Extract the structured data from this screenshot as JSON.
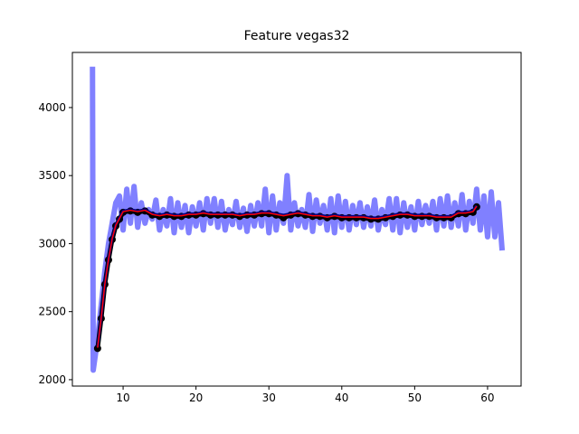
{
  "chart_data": {
    "type": "line",
    "title": "Feature vegas32",
    "xlim": [
      3.04,
      64.6
    ],
    "ylim": [
      1953,
      4405
    ],
    "xticks": [
      10,
      20,
      30,
      40,
      50,
      60
    ],
    "yticks": [
      2000,
      2500,
      3000,
      3500,
      4000
    ],
    "series": [
      {
        "color": "#8080ff",
        "linewidth": 6,
        "x": [
          5.8,
          5.9,
          6.5,
          7,
          7.5,
          8,
          8.5,
          9,
          9.5,
          10,
          10.5,
          11,
          11.5,
          12,
          12.5,
          13,
          13.5,
          14,
          14.5,
          15,
          15.5,
          16,
          16.5,
          17,
          17.5,
          18,
          18.5,
          19,
          19.5,
          20,
          20.5,
          21,
          21.5,
          22,
          22.5,
          23,
          23.5,
          24,
          24.5,
          25,
          25.5,
          26,
          26.5,
          27,
          27.5,
          28,
          28.5,
          29,
          29.5,
          30,
          30.5,
          31,
          31.5,
          32,
          32.5,
          33,
          33.5,
          34,
          34.5,
          35,
          35.5,
          36,
          36.5,
          37,
          37.5,
          38,
          38.5,
          39,
          39.5,
          40,
          40.5,
          41,
          41.5,
          42,
          42.5,
          43,
          43.5,
          44,
          44.5,
          45,
          45.5,
          46,
          46.5,
          47,
          47.5,
          48,
          48.5,
          49,
          49.5,
          50,
          50.5,
          51,
          51.5,
          52,
          52.5,
          53,
          53.5,
          54,
          54.5,
          55,
          55.5,
          56,
          56.5,
          57,
          57.5,
          58,
          58.5,
          59,
          59.5,
          60,
          60.5,
          61,
          61.5,
          62
        ],
        "values": [
          4300,
          2070,
          2300,
          2550,
          2800,
          3000,
          3150,
          3300,
          3350,
          3100,
          3400,
          3150,
          3420,
          3120,
          3300,
          3150,
          3250,
          3180,
          3320,
          3100,
          3250,
          3130,
          3330,
          3080,
          3300,
          3120,
          3280,
          3080,
          3270,
          3130,
          3300,
          3100,
          3330,
          3150,
          3330,
          3120,
          3310,
          3100,
          3250,
          3140,
          3310,
          3120,
          3260,
          3090,
          3280,
          3130,
          3300,
          3130,
          3400,
          3080,
          3350,
          3100,
          3300,
          3150,
          3500,
          3100,
          3300,
          3130,
          3250,
          3120,
          3360,
          3090,
          3320,
          3150,
          3280,
          3100,
          3330,
          3080,
          3350,
          3120,
          3310,
          3100,
          3280,
          3140,
          3300,
          3120,
          3270,
          3130,
          3320,
          3100,
          3250,
          3140,
          3330,
          3100,
          3330,
          3080,
          3300,
          3120,
          3270,
          3100,
          3310,
          3140,
          3280,
          3150,
          3310,
          3100,
          3330,
          3130,
          3350,
          3120,
          3300,
          3130,
          3360,
          3100,
          3310,
          3150,
          3400,
          3100,
          3350,
          3050,
          3380,
          3050,
          3300,
          2950
        ]
      },
      {
        "color": "#000000",
        "linewidth": 5,
        "marker": "o",
        "x": [
          6.5,
          7,
          7.5,
          8,
          8.5,
          9,
          9.5,
          10,
          11,
          12,
          13,
          14,
          15,
          16,
          17,
          18,
          19,
          20,
          21,
          22,
          23,
          24,
          25,
          26,
          27,
          28,
          29,
          30,
          31,
          32,
          33,
          34,
          35,
          36,
          37,
          38,
          39,
          40,
          41,
          42,
          43,
          44,
          45,
          46,
          47,
          48,
          49,
          50,
          51,
          52,
          53,
          54,
          55,
          56,
          57,
          58,
          58.5
        ],
        "values": [
          2230,
          2450,
          2700,
          2880,
          3030,
          3130,
          3180,
          3230,
          3240,
          3230,
          3240,
          3210,
          3200,
          3210,
          3200,
          3200,
          3210,
          3210,
          3220,
          3210,
          3210,
          3210,
          3210,
          3200,
          3210,
          3210,
          3220,
          3220,
          3210,
          3190,
          3210,
          3220,
          3210,
          3200,
          3200,
          3190,
          3200,
          3190,
          3190,
          3190,
          3190,
          3180,
          3180,
          3190,
          3200,
          3210,
          3210,
          3200,
          3200,
          3200,
          3190,
          3190,
          3190,
          3220,
          3220,
          3230,
          3270
        ]
      },
      {
        "color": "#00007f",
        "linewidth": 3,
        "x": [
          6.5,
          7,
          7.5,
          8,
          8.5,
          9,
          9.5,
          10,
          11,
          12,
          13,
          14,
          15,
          16,
          17,
          18,
          19,
          20,
          21,
          22,
          23,
          24,
          25,
          26,
          27,
          28,
          29,
          30,
          31,
          32,
          33,
          34,
          35,
          36,
          37,
          38,
          39,
          40,
          41,
          42,
          43,
          44,
          45,
          46,
          47,
          48,
          49,
          50,
          51,
          52,
          53,
          54,
          55,
          56,
          57,
          58,
          58.5
        ],
        "values": [
          2240,
          2460,
          2710,
          2890,
          3040,
          3140,
          3190,
          3240,
          3250,
          3240,
          3250,
          3220,
          3210,
          3220,
          3210,
          3210,
          3220,
          3220,
          3230,
          3220,
          3220,
          3220,
          3220,
          3210,
          3220,
          3220,
          3230,
          3230,
          3220,
          3210,
          3220,
          3230,
          3220,
          3210,
          3210,
          3200,
          3210,
          3200,
          3200,
          3200,
          3200,
          3190,
          3190,
          3200,
          3210,
          3220,
          3220,
          3210,
          3210,
          3210,
          3200,
          3200,
          3200,
          3230,
          3230,
          3240,
          3280
        ]
      },
      {
        "color": "#ff0000",
        "linewidth": 1.5,
        "x": [
          6.5,
          7,
          7.5,
          8,
          8.5,
          9,
          9.5,
          10,
          11,
          12,
          13,
          14,
          15,
          16,
          17,
          18,
          19,
          20,
          21,
          22,
          23,
          24,
          25,
          26,
          27,
          28,
          29,
          30,
          31,
          32,
          33,
          34,
          35,
          36,
          37,
          38,
          39,
          40,
          41,
          42,
          43,
          44,
          45,
          46,
          47,
          48,
          49,
          50,
          51,
          52,
          53,
          54,
          55,
          56,
          57,
          58,
          58.5
        ],
        "values": [
          2235,
          2455,
          2705,
          2885,
          3035,
          3135,
          3185,
          3235,
          3245,
          3235,
          3245,
          3215,
          3205,
          3215,
          3205,
          3205,
          3215,
          3215,
          3225,
          3215,
          3215,
          3215,
          3215,
          3205,
          3215,
          3215,
          3225,
          3225,
          3215,
          3205,
          3215,
          3225,
          3215,
          3205,
          3205,
          3195,
          3205,
          3195,
          3195,
          3195,
          3195,
          3185,
          3185,
          3195,
          3205,
          3215,
          3215,
          3205,
          3205,
          3205,
          3195,
          3195,
          3195,
          3225,
          3225,
          3235,
          3275
        ]
      }
    ]
  }
}
